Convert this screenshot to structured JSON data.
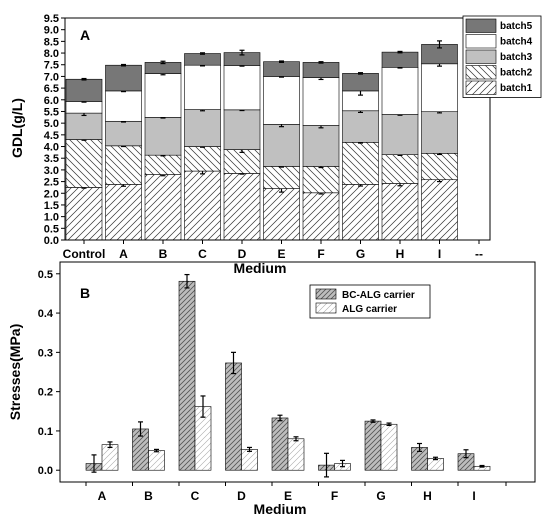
{
  "chart_data": [
    {
      "panel": "A",
      "type": "bar",
      "stacked": true,
      "xlabel": "Medium",
      "ylabel": "GDL(g/L)",
      "ylim": [
        0,
        9.5
      ],
      "yticks": [
        "0.0",
        "0.5",
        "1.0",
        "1.5",
        "2.0",
        "2.5",
        "3.0",
        "3.5",
        "4.0",
        "4.5",
        "5.0",
        "5.5",
        "6.0",
        "6.5",
        "7.0",
        "7.5",
        "8.0",
        "8.5",
        "9.0",
        "9.5"
      ],
      "categories": [
        "Control",
        "A",
        "B",
        "C",
        "D",
        "E",
        "F",
        "G",
        "H",
        "I",
        "--"
      ],
      "legend_position": "top-right",
      "series": [
        {
          "name": "batch1",
          "values": [
            2.25,
            2.38,
            2.8,
            2.95,
            2.85,
            2.2,
            2.02,
            2.38,
            2.42,
            2.58,
            null
          ],
          "errors": [
            0.03,
            0.08,
            0.05,
            0.12,
            0.03,
            0.15,
            0.05,
            0.07,
            0.1,
            0.08,
            null
          ],
          "color": "#ffffff",
          "pattern": "diag-fwd"
        },
        {
          "name": "batch2",
          "values": [
            2.05,
            1.65,
            0.83,
            1.05,
            1.02,
            0.95,
            1.13,
            1.8,
            1.23,
            1.13,
            null
          ],
          "errors": [
            0.03,
            0.03,
            0.03,
            0.03,
            0.12,
            0.03,
            0.05,
            0.03,
            0.03,
            0.05,
            null
          ],
          "color": "#ffffff",
          "pattern": "diag-back"
        },
        {
          "name": "batch3",
          "values": [
            1.13,
            1.05,
            1.62,
            1.58,
            1.7,
            1.8,
            1.75,
            1.35,
            1.72,
            1.78,
            null
          ],
          "errors": [
            0.1,
            0.03,
            0.03,
            0.05,
            0.03,
            0.1,
            0.1,
            0.07,
            0.03,
            0.05,
            null
          ],
          "color": "#c0c0c0",
          "pattern": "solid"
        },
        {
          "name": "batch4",
          "values": [
            0.5,
            1.3,
            1.87,
            1.9,
            1.9,
            2.05,
            2.05,
            0.85,
            2.02,
            2.05,
            null
          ],
          "errors": [
            0.03,
            0.03,
            0.05,
            0.03,
            0.03,
            0.03,
            0.08,
            0.18,
            0.03,
            0.1,
            null
          ],
          "color": "#ffffff",
          "pattern": "solid"
        },
        {
          "name": "batch5",
          "values": [
            0.95,
            1.1,
            0.48,
            0.5,
            0.55,
            0.63,
            0.65,
            0.75,
            0.65,
            0.83,
            null
          ],
          "errors": [
            0.03,
            0.03,
            0.05,
            0.03,
            0.1,
            0.03,
            0.03,
            0.03,
            0.03,
            0.15,
            null
          ],
          "color": "#777777",
          "pattern": "solid"
        }
      ]
    },
    {
      "panel": "B",
      "type": "bar",
      "stacked": false,
      "xlabel": "Medium",
      "ylabel": "Stresses(MPa)",
      "ylim": [
        -0.03,
        0.53
      ],
      "yticks": [
        "0.0",
        "0.1",
        "0.2",
        "0.3",
        "0.4",
        "0.5"
      ],
      "categories": [
        "A",
        "B",
        "C",
        "D",
        "E",
        "F",
        "G",
        "H",
        "I"
      ],
      "legend_position": "top-right",
      "series": [
        {
          "name": "BC-ALG  carrier",
          "values": [
            0.017,
            0.105,
            0.481,
            0.273,
            0.133,
            0.013,
            0.125,
            0.058,
            0.042
          ],
          "errors": [
            0.022,
            0.018,
            0.017,
            0.027,
            0.007,
            0.03,
            0.003,
            0.01,
            0.01
          ],
          "color": "#bdbdbd",
          "pattern": "diag-fwd"
        },
        {
          "name": "ALG  carrier",
          "values": [
            0.065,
            0.05,
            0.162,
            0.053,
            0.08,
            0.017,
            0.117,
            0.03,
            0.01
          ],
          "errors": [
            0.007,
            0.003,
            0.027,
            0.005,
            0.005,
            0.008,
            0.003,
            0.003,
            0.002
          ],
          "color": "#ffffff",
          "pattern": "diag-fwd-light"
        }
      ]
    }
  ]
}
